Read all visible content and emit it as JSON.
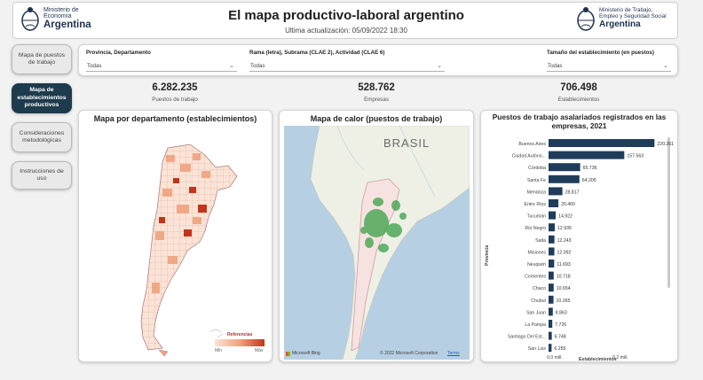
{
  "header": {
    "title": "El mapa productivo-laboral argentino",
    "updated": "Ultima actualización: 05/09/2022 18:30",
    "left_logo": {
      "line1": "Ministerio de",
      "line2": "Economía",
      "line3": "Argentina"
    },
    "right_logo": {
      "line1": "Ministerio de Trabajo,",
      "line2": "Empleo y Seguridad Social",
      "line3": "Argentina"
    }
  },
  "sidebar": {
    "items": [
      {
        "label": "Mapa de puestos de trabajo",
        "active": false
      },
      {
        "label": "Mapa de establecimientos productivos",
        "active": true
      },
      {
        "label": "Consideraciones metodológicas",
        "active": false
      },
      {
        "label": "Instrucciones de uso",
        "active": false
      }
    ]
  },
  "filters": [
    {
      "label": "Provincia, Departamento",
      "value": "Todas"
    },
    {
      "label": "Rama (letra), Subrama (CLAE 2), Actividad (CLAE 6)",
      "value": "Todas"
    },
    {
      "label": "Tamaño del establecimiento (en puestos)",
      "value": "Todas"
    }
  ],
  "kpis": [
    {
      "value": "6.282.235",
      "label": "Puestos de trabajo"
    },
    {
      "value": "528.762",
      "label": "Empresas"
    },
    {
      "value": "706.498",
      "label": "Establecimientos"
    }
  ],
  "map1": {
    "title": "Mapa por departamento (establecimientos)",
    "legend_title": "Referencias",
    "legend_min": "Min",
    "legend_max": "Máx",
    "colors": {
      "low": "#fbe3d6",
      "mid": "#f1a27e",
      "high": "#c0361a"
    }
  },
  "map2": {
    "title": "Mapa de calor (puestos de trabajo)",
    "country_label": "BRASIL",
    "attribution_brand": "Microsoft Bing",
    "copyright": "© 2022 Microsoft Corporation",
    "terms": "Terms",
    "colors": {
      "land": "#eef0e6",
      "water": "#b6cfe3",
      "heat": "#3fa34d"
    }
  },
  "chart_data": {
    "type": "bar",
    "orientation": "horizontal",
    "title": "Puestos de trabajo asalariados registrados en las empresas, 2021",
    "xlabel": "Establecimientos",
    "ylabel": "Provincia",
    "xticks": [
      "0,0 mill.",
      "0,2 mill."
    ],
    "xlim": [
      0,
      240000
    ],
    "color": "#1f3d5a",
    "categories": [
      "Buenos Aires",
      "Ciudad Autóno...",
      "Córdoba",
      "Santa Fe",
      "Mendoza",
      "Entre Ríos",
      "Tucumán",
      "Río Negro",
      "Salta",
      "Misiones",
      "Neuquén",
      "Corrientes",
      "Chaco",
      "Chubut",
      "San Juan",
      "La Pampa",
      "Santiago Del Est...",
      "San Luis"
    ],
    "values": [
      220261,
      157563,
      65736,
      64205,
      28817,
      20460,
      14922,
      12935,
      12243,
      12092,
      11693,
      10718,
      10654,
      10265,
      8863,
      7726,
      6748,
      6255
    ],
    "value_labels": [
      "220.261",
      "157.563",
      "65.736",
      "64.205",
      "28.817",
      "20.460",
      "14.922",
      "12.935",
      "12.243",
      "12.092",
      "11.693",
      "10.718",
      "10.654",
      "10.265",
      "8.863",
      "7.726",
      "6.748",
      "6.255"
    ]
  }
}
